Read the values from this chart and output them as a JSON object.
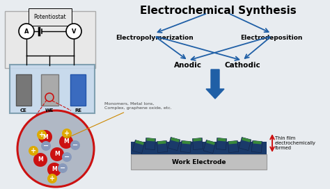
{
  "bg_color": "#e8ecf0",
  "title": "Electrochemical Synthesis",
  "title_fontsize": 11,
  "labels": {
    "electropolymerization": "Electropolymerization",
    "electrodeposition": "Electrodeposition",
    "anodic": "Anodic",
    "cathodic": "Cathodic",
    "potentiostat": "Potentiostat",
    "CE": "CE",
    "WE": "WE",
    "RE": "RE",
    "work_electrode": "Work Electrode",
    "thin_film": "Thin film\nelectrochemically\nformed",
    "monomers": "Monomers, Metal Ions,\nComplex, graphene oxide, etc."
  },
  "arrow_color": "#1f5fa6",
  "red_color": "#cc1111",
  "zoom_bg": "#b0b8c5",
  "cell_fill": "#c5d8ec",
  "ce_color": "#777777",
  "we_color": "#999999",
  "re_color": "#3a6bbf",
  "m_color": "#cc1111",
  "minus_color": "#8899bb",
  "plus_color": "#ddaa00",
  "film_dark": "#1a3a6a",
  "film_green": "#3a8a3a",
  "electrode_base": "#c0c0c0"
}
